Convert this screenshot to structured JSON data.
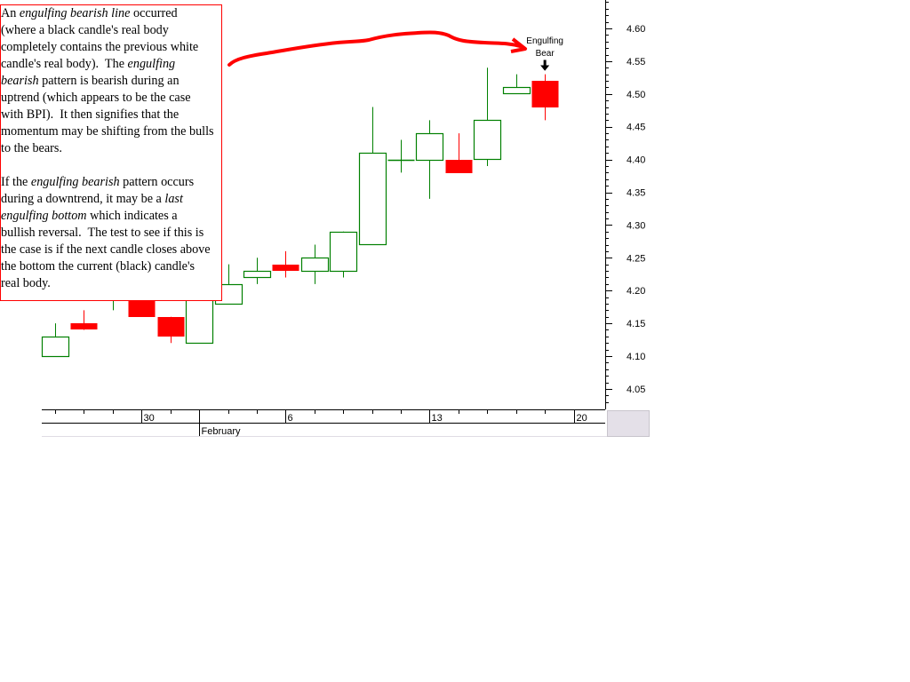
{
  "chart_data": {
    "type": "candlestick",
    "title": "",
    "xlabel": "",
    "ylabel": "",
    "ylim": [
      4.02,
      4.643
    ],
    "y_ticks": [
      "4.60",
      "4.55",
      "4.50",
      "4.45",
      "4.40",
      "4.35",
      "4.30",
      "4.25",
      "4.20",
      "4.15",
      "4.10",
      "4.05"
    ],
    "x_labels": [
      {
        "label": "30",
        "index": 3
      },
      {
        "label": "February",
        "index": 5,
        "row": 2
      },
      {
        "label": "6",
        "index": 8
      },
      {
        "label": "13",
        "index": 13
      },
      {
        "label": "20",
        "index": 18
      }
    ],
    "candles": [
      {
        "open": 4.1,
        "close": 4.13,
        "high": 4.15,
        "low": 4.1
      },
      {
        "open": 4.15,
        "close": 4.14,
        "high": 4.17,
        "low": 4.14
      },
      {
        "open": 4.2,
        "close": 4.22,
        "high": 4.24,
        "low": 4.17
      },
      {
        "open": 4.21,
        "close": 4.16,
        "high": 4.22,
        "low": 4.16
      },
      {
        "open": 4.16,
        "close": 4.13,
        "high": 4.16,
        "low": 4.12
      },
      {
        "open": 4.12,
        "close": 4.2,
        "high": 4.22,
        "low": 4.12
      },
      {
        "open": 4.18,
        "close": 4.21,
        "high": 4.24,
        "low": 4.18
      },
      {
        "open": 4.22,
        "close": 4.23,
        "high": 4.25,
        "low": 4.21
      },
      {
        "open": 4.24,
        "close": 4.23,
        "high": 4.26,
        "low": 4.22
      },
      {
        "open": 4.23,
        "close": 4.25,
        "high": 4.27,
        "low": 4.21
      },
      {
        "open": 4.23,
        "close": 4.29,
        "high": 4.29,
        "low": 4.22
      },
      {
        "open": 4.27,
        "close": 4.41,
        "high": 4.48,
        "low": 4.27
      },
      {
        "open": 4.4,
        "close": 4.4,
        "high": 4.43,
        "low": 4.38
      },
      {
        "open": 4.4,
        "close": 4.44,
        "high": 4.46,
        "low": 4.34
      },
      {
        "open": 4.4,
        "close": 4.38,
        "high": 4.44,
        "low": 4.38
      },
      {
        "open": 4.4,
        "close": 4.46,
        "high": 4.54,
        "low": 4.39
      },
      {
        "open": 4.5,
        "close": 4.51,
        "high": 4.53,
        "low": 4.5
      },
      {
        "open": 4.52,
        "close": 4.48,
        "high": 4.53,
        "low": 4.46
      }
    ],
    "colors": {
      "up": "#008000",
      "down": "#ff0000",
      "annotation_arrow": "#ff0000"
    },
    "annotations": [
      {
        "text_lines": [
          "Engulfing",
          "Bear"
        ],
        "candle_index": 17
      }
    ],
    "grid": false
  },
  "note": {
    "paragraphs": [
      [
        [
          {
            "t": "An "
          },
          {
            "t": "engulfing bearish line",
            "i": true
          },
          {
            "t": " occurred"
          }
        ],
        [
          {
            "t": "(where a black candle's real body"
          }
        ],
        [
          {
            "t": "completely contains the previous white"
          }
        ],
        [
          {
            "t": "candle's real body).  The "
          },
          {
            "t": "engulfing",
            "i": true
          }
        ],
        [
          {
            "t": "bearish",
            "i": true
          },
          {
            "t": " pattern is bearish during an"
          }
        ],
        [
          {
            "t": "uptrend (which appears to be the case"
          }
        ],
        [
          {
            "t": "with BPI).  It then signifies that the"
          }
        ],
        [
          {
            "t": "momentum may be shifting from the bulls"
          }
        ],
        [
          {
            "t": "to the bears."
          }
        ]
      ],
      [
        [
          {
            "t": "If the "
          },
          {
            "t": "engulfing bearish",
            "i": true
          },
          {
            "t": " pattern occurs"
          }
        ],
        [
          {
            "t": "during a downtrend, it may be a "
          },
          {
            "t": "last",
            "i": true
          }
        ],
        [
          {
            "t": "engulfing bottom",
            "i": true
          },
          {
            "t": " which indicates a"
          }
        ],
        [
          {
            "t": "bullish reversal.  The test to see if this is"
          }
        ],
        [
          {
            "t": "the case is if the next candle closes above"
          }
        ],
        [
          {
            "t": "the bottom the current (black) candle's"
          }
        ],
        [
          {
            "t": "real body."
          }
        ]
      ]
    ]
  }
}
